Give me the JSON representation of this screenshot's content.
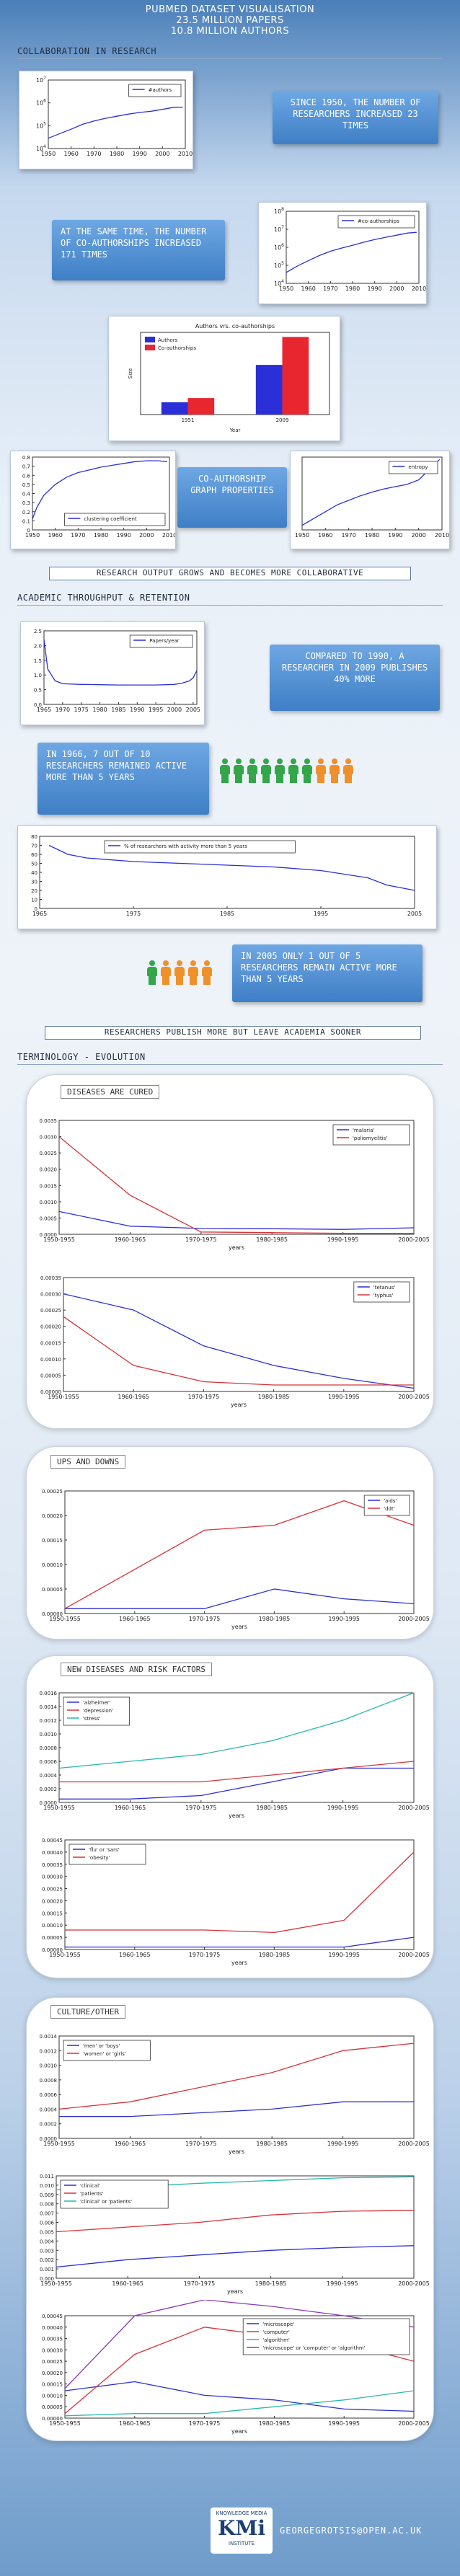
{
  "header": {
    "title": "PubMed dataset visualisation",
    "papers": "23.5 million papers",
    "authors": "10.8 million authors"
  },
  "sections": {
    "collab": "Collaboration in research",
    "throughput": "Academic throughput & retention",
    "terminology": "Terminology - Evolution"
  },
  "bubbles": {
    "researchers": "Since 1950, the number of researchers increased 23 times",
    "coauth": "At the same time, the number of co-authorships increased 171 times",
    "graph": "Co-authorship graph properties",
    "papers": "Compared to 1990, a researcher in 2009 publishes 40% more",
    "retained": "In 1966, 7 out of 10 researchers remained active more than 5 years",
    "active2005": "In 2005 only 1 out of 5 researchers remain active more than 5 years"
  },
  "banners": {
    "collab": "Research output grows and becomes more collaborative",
    "leave": "Researchers publish more but leave academia sooner"
  },
  "panels": {
    "diseases": "Diseases are cured",
    "ups": "Ups and downs",
    "newdis": "New diseases and risk factors",
    "culture": "Culture/other"
  },
  "people": {
    "row1": {
      "green": 7,
      "orange": 3
    },
    "row2": {
      "green": 1,
      "orange": 4
    }
  },
  "footer": {
    "logo_top": "Knowledge Media",
    "logo_main": "KMi",
    "logo_bottom": "Institute",
    "url": "georgegrotsis@open.ac.uk"
  },
  "colors": {
    "blue": "#2b2fd8",
    "red": "#d8333a",
    "cyan": "#27b8b0",
    "purple": "#8a3ab6"
  },
  "chart_data": [
    {
      "id": "authors",
      "type": "line",
      "title": "",
      "xlim": [
        1950,
        2010
      ],
      "xticks": [
        1950,
        1960,
        1970,
        1980,
        1990,
        2000,
        2010
      ],
      "ylog": true,
      "ylim": [
        10000,
        10000000
      ],
      "ytick_labels": [
        "10^4",
        "10^5",
        "10^6",
        "10^7"
      ],
      "ytick_values": [
        10000,
        100000,
        1000000,
        10000000
      ],
      "series": [
        {
          "name": "#authors",
          "color": "#2b2fd8",
          "x": [
            1950,
            1955,
            1960,
            1965,
            1970,
            1975,
            1980,
            1985,
            1990,
            1995,
            2000,
            2005,
            2009
          ],
          "y": [
            28000,
            45000,
            70000,
            115000,
            160000,
            210000,
            260000,
            320000,
            380000,
            430000,
            520000,
            640000,
            650000
          ]
        }
      ]
    },
    {
      "id": "coauth",
      "type": "line",
      "title": "",
      "xlim": [
        1950,
        2010
      ],
      "xticks": [
        1950,
        1960,
        1970,
        1980,
        1990,
        2000,
        2010
      ],
      "ylog": true,
      "ylim": [
        10000,
        100000000
      ],
      "ytick_labels": [
        "10^4",
        "10^5",
        "10^6",
        "10^7",
        "10^8"
      ],
      "ytick_values": [
        10000,
        100000,
        1000000,
        10000000,
        100000000
      ],
      "series": [
        {
          "name": "#co-authorships",
          "color": "#2b2fd8",
          "x": [
            1950,
            1955,
            1960,
            1965,
            1970,
            1975,
            1980,
            1985,
            1990,
            1995,
            2000,
            2005,
            2009
          ],
          "y": [
            40000,
            90000,
            180000,
            350000,
            600000,
            900000,
            1300000,
            1900000,
            2700000,
            3600000,
            4700000,
            6200000,
            6800000
          ]
        }
      ]
    },
    {
      "id": "authvscoauth",
      "type": "bar",
      "title": "Authors vrs. co-authorships",
      "categories": [
        "1951",
        "2009"
      ],
      "xlabel": "Year",
      "ylabel": "Size",
      "ylog": true,
      "ylim": [
        10000,
        10000000
      ],
      "series": [
        {
          "name": "Authors",
          "color": "#2b2fd8",
          "values": [
            28000,
            650000
          ]
        },
        {
          "name": "Co-authorships",
          "color": "#e8262f",
          "values": [
            40000,
            6800000
          ]
        }
      ]
    },
    {
      "id": "clustering",
      "type": "line",
      "title": "",
      "xlim": [
        1950,
        2010
      ],
      "xticks": [
        1950,
        1960,
        1970,
        1980,
        1990,
        2000,
        2010
      ],
      "ylim": [
        0,
        0.8
      ],
      "yticks": [
        0,
        0.1,
        0.2,
        0.3,
        0.4,
        0.5,
        0.6,
        0.7,
        0.8
      ],
      "series": [
        {
          "name": "clustering coefficient",
          "color": "#2b2fd8",
          "x": [
            1950,
            1952,
            1955,
            1960,
            1965,
            1970,
            1975,
            1980,
            1985,
            1990,
            1995,
            2000,
            2005,
            2009
          ],
          "y": [
            0.12,
            0.25,
            0.38,
            0.5,
            0.58,
            0.63,
            0.66,
            0.69,
            0.71,
            0.73,
            0.75,
            0.76,
            0.76,
            0.75
          ]
        }
      ]
    },
    {
      "id": "entropy",
      "type": "line",
      "title": "",
      "xlim": [
        1950,
        2010
      ],
      "xticks": [
        1950,
        1960,
        1970,
        1980,
        1990,
        2000,
        2010
      ],
      "ylim": [
        4,
        20
      ],
      "yticks": [],
      "series": [
        {
          "name": "entropy",
          "color": "#2b2fd8",
          "x": [
            1950,
            1955,
            1960,
            1965,
            1970,
            1975,
            1980,
            1985,
            1990,
            1995,
            2000,
            2003,
            2005,
            2007,
            2009
          ],
          "y": [
            5.0,
            6.5,
            8.0,
            9.5,
            10.5,
            11.5,
            12.3,
            13.0,
            13.5,
            14.0,
            15.0,
            16.5,
            17.0,
            18.5,
            19.5
          ]
        }
      ]
    },
    {
      "id": "papers",
      "type": "line",
      "title": "",
      "xlim": [
        1965,
        2006
      ],
      "xticks": [
        1965,
        1970,
        1975,
        1980,
        1985,
        1990,
        1995,
        2000,
        2005
      ],
      "ylim": [
        0,
        2.5
      ],
      "yticks": [
        0,
        0.5,
        1.0,
        1.5,
        2.0,
        2.5
      ],
      "ytick_labels": [
        "0.0",
        "0.5",
        "1.0",
        "1.5",
        "2.0",
        "2.5"
      ],
      "series": [
        {
          "name": "Papers/year",
          "color": "#2b2fd8",
          "x": [
            1965,
            1966,
            1968,
            1970,
            1975,
            1980,
            1985,
            1990,
            1995,
            2000,
            2002,
            2004,
            2005,
            2006
          ],
          "y": [
            2.2,
            1.2,
            0.8,
            0.7,
            0.68,
            0.67,
            0.66,
            0.66,
            0.66,
            0.68,
            0.72,
            0.8,
            0.9,
            1.15
          ]
        }
      ]
    },
    {
      "id": "retention",
      "type": "line",
      "title": "",
      "xlim": [
        1965,
        2005
      ],
      "xticks": [
        1965,
        1975,
        1985,
        1995,
        2005
      ],
      "ylim": [
        0,
        80
      ],
      "yticks": [
        0,
        10,
        20,
        30,
        40,
        50,
        60,
        70,
        80
      ],
      "series": [
        {
          "name": "% of researchers with activity more than 5 years",
          "color": "#2b2fd8",
          "x": [
            1966,
            1968,
            1970,
            1975,
            1980,
            1985,
            1990,
            1995,
            2000,
            2002,
            2005
          ],
          "y": [
            70,
            60,
            56,
            52,
            50,
            48,
            46,
            42,
            34,
            26,
            20
          ]
        }
      ]
    },
    {
      "id": "malaria",
      "type": "line",
      "xlabel": "years",
      "categories": [
        "1950-1955",
        "1960-1965",
        "1970-1975",
        "1980-1985",
        "1990-1995",
        "2000-2005"
      ],
      "ylim": [
        0,
        0.0035
      ],
      "yticks": [
        0,
        0.0005,
        0.001,
        0.0015,
        0.002,
        0.0025,
        0.003,
        0.0035
      ],
      "ytick_labels": [
        "0.0000",
        "0.0005",
        "0.0010",
        "0.0015",
        "0.0020",
        "0.0025",
        "0.0030",
        "0.0035"
      ],
      "series": [
        {
          "name": "'malaria'",
          "color": "#2b2fd8",
          "values": [
            0.0007,
            0.00025,
            0.00018,
            0.00017,
            0.00015,
            0.0002
          ]
        },
        {
          "name": "'poliomyelitis'",
          "color": "#d8333a",
          "values": [
            0.003,
            0.0012,
            7e-05,
            5e-05,
            3e-05,
            3e-05
          ]
        }
      ]
    },
    {
      "id": "tetanus",
      "type": "line",
      "xlabel": "years",
      "categories": [
        "1950-1955",
        "1960-1965",
        "1970-1975",
        "1980-1985",
        "1990-1995",
        "2000-2005"
      ],
      "ylim": [
        0,
        0.00035
      ],
      "yticks": [
        0,
        5e-05,
        0.0001,
        0.00015,
        0.0002,
        0.00025,
        0.0003,
        0.00035
      ],
      "ytick_labels": [
        "0.00000",
        "0.00005",
        "0.00010",
        "0.00015",
        "0.00020",
        "0.00025",
        "0.00030",
        "0.00035"
      ],
      "series": [
        {
          "name": "'tetanus'",
          "color": "#2b2fd8",
          "values": [
            0.0003,
            0.00025,
            0.00014,
            8e-05,
            4e-05,
            1e-05
          ]
        },
        {
          "name": "'typhus'",
          "color": "#d8333a",
          "values": [
            0.00023,
            8e-05,
            3e-05,
            2e-05,
            2e-05,
            2e-05
          ]
        }
      ]
    },
    {
      "id": "aids",
      "type": "line",
      "xlabel": "years",
      "categories": [
        "1950-1955",
        "1960-1965",
        "1970-1975",
        "1980-1985",
        "1990-1995",
        "2000-2005"
      ],
      "ylim": [
        0,
        0.00025
      ],
      "yticks": [
        0,
        5e-05,
        0.0001,
        0.00015,
        0.0002,
        0.00025
      ],
      "ytick_labels": [
        "0.00000",
        "0.00005",
        "0.00010",
        "0.00015",
        "0.00020",
        "0.00025"
      ],
      "series": [
        {
          "name": "'aids'",
          "color": "#2b2fd8",
          "values": [
            1e-05,
            1e-05,
            1e-05,
            5e-05,
            3e-05,
            2e-05
          ]
        },
        {
          "name": "'ddt'",
          "color": "#d8333a",
          "values": [
            1e-05,
            9e-05,
            0.00017,
            0.00018,
            0.00023,
            0.00018
          ]
        }
      ]
    },
    {
      "id": "alzheimer",
      "type": "line",
      "xlabel": "years",
      "categories": [
        "1950-1955",
        "1960-1965",
        "1970-1975",
        "1980-1985",
        "1990-1995",
        "2000-2005"
      ],
      "ylim": [
        0,
        0.0016
      ],
      "yticks": [
        0,
        0.0002,
        0.0004,
        0.0006,
        0.0008,
        0.001,
        0.0012,
        0.0014,
        0.0016
      ],
      "ytick_labels": [
        "0.0000",
        "0.0002",
        "0.0004",
        "0.0006",
        "0.0008",
        "0.0010",
        "0.0012",
        "0.0014",
        "0.0016"
      ],
      "series": [
        {
          "name": "'alzheimer'",
          "color": "#2b2fd8",
          "values": [
            5e-05,
            5e-05,
            0.0001,
            0.0003,
            0.0005,
            0.0005
          ]
        },
        {
          "name": "'depression'",
          "color": "#d8333a",
          "values": [
            0.0003,
            0.0003,
            0.0003,
            0.0004,
            0.0005,
            0.0006
          ]
        },
        {
          "name": "'stress'",
          "color": "#27b8b0",
          "values": [
            0.0005,
            0.0006,
            0.0007,
            0.0009,
            0.0012,
            0.0016
          ]
        }
      ]
    },
    {
      "id": "flu",
      "type": "line",
      "xlabel": "years",
      "categories": [
        "1950-1955",
        "1960-1965",
        "1970-1975",
        "1980-1985",
        "1990-1995",
        "2000-2005"
      ],
      "ylim": [
        0,
        0.00045
      ],
      "yticks": [
        0,
        5e-05,
        0.0001,
        0.00015,
        0.0002,
        0.00025,
        0.0003,
        0.00035,
        0.0004,
        0.00045
      ],
      "ytick_labels": [
        "0.00000",
        "0.00005",
        "0.00010",
        "0.00015",
        "0.00020",
        "0.00025",
        "0.00030",
        "0.00035",
        "0.00040",
        "0.00045"
      ],
      "series": [
        {
          "name": "'flu' or 'sars'",
          "color": "#2b2fd8",
          "values": [
            1e-05,
            1e-05,
            1e-05,
            1e-05,
            1e-05,
            5e-05
          ]
        },
        {
          "name": "'obesity'",
          "color": "#d8333a",
          "values": [
            8e-05,
            8e-05,
            8e-05,
            7e-05,
            0.00012,
            0.0004
          ]
        }
      ]
    },
    {
      "id": "men",
      "type": "line",
      "xlabel": "years",
      "categories": [
        "1950-1955",
        "1960-1965",
        "1970-1975",
        "1980-1985",
        "1990-1995",
        "2000-2005"
      ],
      "ylim": [
        0,
        0.0014
      ],
      "yticks": [
        0,
        0.0002,
        0.0004,
        0.0006,
        0.0008,
        0.001,
        0.0012,
        0.0014
      ],
      "ytick_labels": [
        "0.0000",
        "0.0002",
        "0.0004",
        "0.0006",
        "0.0008",
        "0.0010",
        "0.0012",
        "0.0014"
      ],
      "series": [
        {
          "name": "'men' or 'boys'",
          "color": "#2b2fd8",
          "values": [
            0.0003,
            0.0003,
            0.00035,
            0.0004,
            0.0005,
            0.0005
          ]
        },
        {
          "name": "'women' or 'girls'",
          "color": "#d8333a",
          "values": [
            0.0004,
            0.0005,
            0.0007,
            0.0009,
            0.0012,
            0.0013
          ]
        }
      ]
    },
    {
      "id": "clinical",
      "type": "line",
      "xlabel": "years",
      "categories": [
        "1950-1955",
        "1960-1965",
        "1970-1975",
        "1980-1985",
        "1990-1995",
        "2000-2005"
      ],
      "ylim": [
        0,
        0.011
      ],
      "yticks": [
        0,
        0.001,
        0.002,
        0.003,
        0.004,
        0.005,
        0.006,
        0.007,
        0.008,
        0.009,
        0.01,
        0.011
      ],
      "ytick_labels": [
        "0.000",
        "0.001",
        "0.002",
        "0.003",
        "0.004",
        "0.005",
        "0.006",
        "0.007",
        "0.008",
        "0.009",
        "0.010",
        "0.011"
      ],
      "series": [
        {
          "name": "'clinical'",
          "color": "#2b2fd8",
          "values": [
            0.0012,
            0.002,
            0.0025,
            0.003,
            0.0033,
            0.0035
          ]
        },
        {
          "name": "'patients'",
          "color": "#d8333a",
          "values": [
            0.005,
            0.0055,
            0.006,
            0.0068,
            0.0072,
            0.0073
          ]
        },
        {
          "name": "'clinical' or 'patients'",
          "color": "#27b8b0",
          "values": [
            0.0095,
            0.0098,
            0.0102,
            0.0105,
            0.0108,
            0.0109
          ]
        }
      ]
    },
    {
      "id": "microscope",
      "type": "line",
      "xlabel": "years",
      "categories": [
        "1950-1955",
        "1960-1965",
        "1970-1975",
        "1980-1985",
        "1990-1995",
        "2000-2005"
      ],
      "ylim": [
        0,
        0.00045
      ],
      "yticks": [
        0,
        5e-05,
        0.0001,
        0.00015,
        0.0002,
        0.00025,
        0.0003,
        0.00035,
        0.0004,
        0.00045
      ],
      "ytick_labels": [
        "0.00000",
        "0.00005",
        "0.00010",
        "0.00015",
        "0.00020",
        "0.00025",
        "0.00030",
        "0.00035",
        "0.00040",
        "0.00045"
      ],
      "series": [
        {
          "name": "'microscope'",
          "color": "#2b2fd8",
          "values": [
            0.00012,
            0.00016,
            0.0001,
            8e-05,
            4e-05,
            3e-05
          ]
        },
        {
          "name": "'computer'",
          "color": "#d8333a",
          "values": [
            2e-05,
            0.00028,
            0.0004,
            0.00036,
            0.00033,
            0.00025
          ]
        },
        {
          "name": "'algorithm'",
          "color": "#27b8b0",
          "values": [
            1e-05,
            2e-05,
            2e-05,
            5e-05,
            8e-05,
            0.00012
          ]
        },
        {
          "name": "'microscope' or 'computer' or 'algorithm'",
          "color": "#8a3ab6",
          "values": [
            0.00013,
            0.00045,
            0.00052,
            0.00049,
            0.00045,
            0.0004
          ]
        }
      ]
    }
  ]
}
